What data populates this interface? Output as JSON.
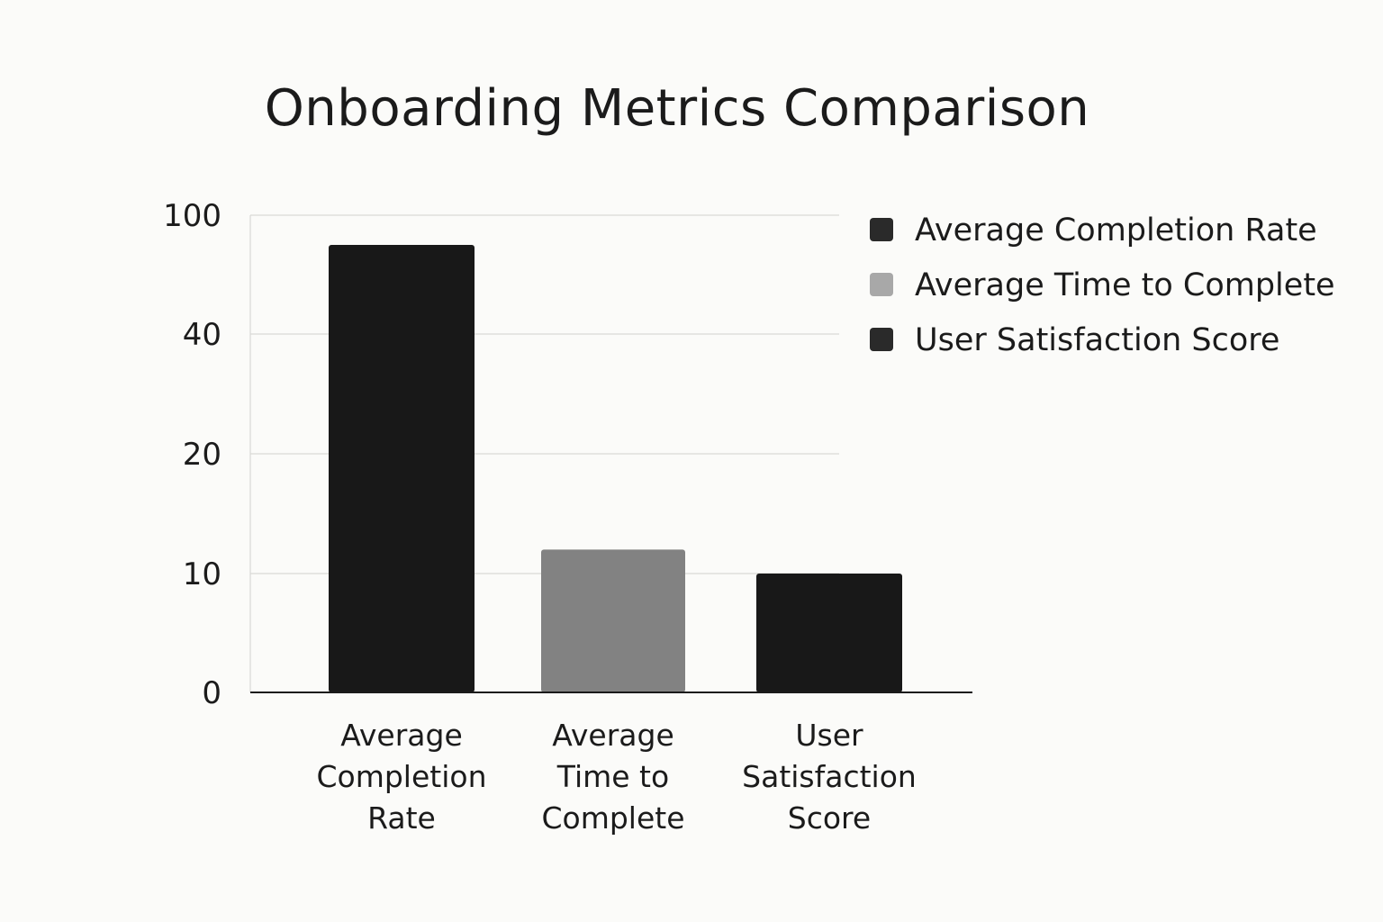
{
  "chart_data": {
    "type": "bar",
    "title": "Onboarding Metrics Comparison",
    "categories": [
      "Average Completion Rate",
      "Average Time to Complete",
      "User Satisfaction Score"
    ],
    "category_lines": [
      [
        "Average",
        "Completion",
        "Rate"
      ],
      [
        "Average",
        "Time to",
        "Complete"
      ],
      [
        "User",
        "Satisfaction",
        "Score"
      ]
    ],
    "values": [
      85,
      12,
      10
    ],
    "colors": [
      "#181818",
      "#828282",
      "#181818"
    ],
    "y_ticks": [
      {
        "label": "0",
        "value": 0
      },
      {
        "label": "10",
        "value": 10
      },
      {
        "label": "20",
        "value": 20
      },
      {
        "label": "40",
        "value": 40
      },
      {
        "label": "100",
        "value": 100
      }
    ],
    "ylim": [
      0,
      100
    ],
    "grid": true,
    "legend_position": "top-right",
    "legend": [
      {
        "label": "Average Completion Rate",
        "color": "#2a2a2a"
      },
      {
        "label": "Average Time to Complete",
        "color": "#a8a8a8"
      },
      {
        "label": "User Satisfaction Score",
        "color": "#2a2a2a"
      }
    ],
    "xlabel": "",
    "ylabel": ""
  }
}
